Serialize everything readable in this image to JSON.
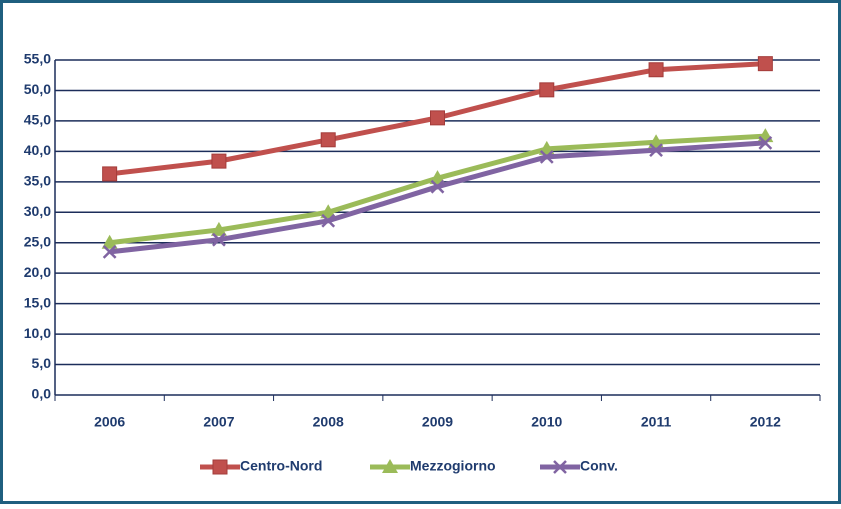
{
  "chart_data": {
    "type": "line",
    "categories": [
      "2006",
      "2007",
      "2008",
      "2009",
      "2010",
      "2011",
      "2012"
    ],
    "series": [
      {
        "name": "Centro-Nord",
        "color": "#c0504d",
        "marker": "square",
        "values": [
          36.3,
          38.4,
          41.9,
          45.5,
          50.1,
          53.4,
          54.4
        ]
      },
      {
        "name": "Mezzogiorno",
        "color": "#9bbb59",
        "marker": "triangle",
        "values": [
          25.0,
          27.1,
          30.0,
          35.6,
          40.4,
          41.5,
          42.5
        ]
      },
      {
        "name": "Conv.",
        "color": "#8064a2",
        "marker": "x",
        "values": [
          23.5,
          25.5,
          28.6,
          34.2,
          39.1,
          40.2,
          41.4
        ]
      }
    ],
    "ylim": [
      0,
      55
    ],
    "yticks": [
      {
        "value": 0,
        "label": "0,0"
      },
      {
        "value": 5,
        "label": "5,0"
      },
      {
        "value": 10,
        "label": "10,0"
      },
      {
        "value": 15,
        "label": "15,0"
      },
      {
        "value": 20,
        "label": "20,0"
      },
      {
        "value": 25,
        "label": "25,0"
      },
      {
        "value": 30,
        "label": "30,0"
      },
      {
        "value": 35,
        "label": "35,0"
      },
      {
        "value": 40,
        "label": "40,0"
      },
      {
        "value": 45,
        "label": "45,0"
      },
      {
        "value": 50,
        "label": "50,0"
      },
      {
        "value": 55,
        "label": "55,0"
      }
    ],
    "grid": true,
    "legend": "bottom"
  }
}
